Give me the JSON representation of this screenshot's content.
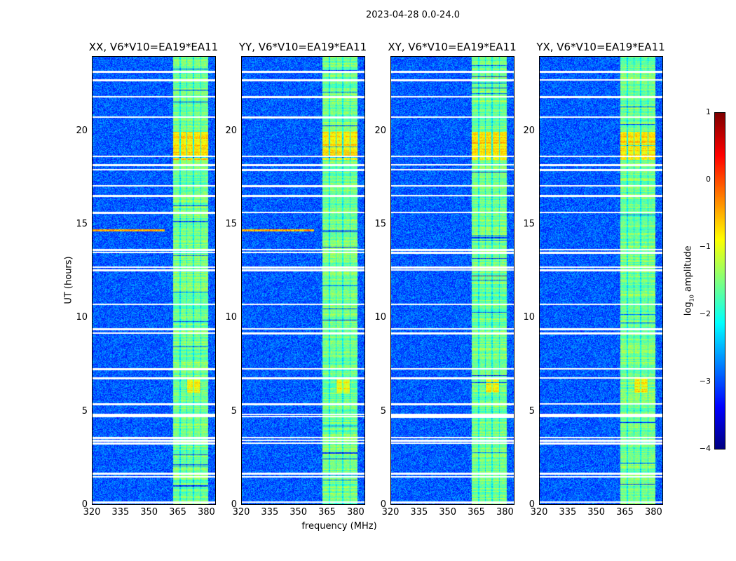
{
  "chart_data": {
    "type": "heatmap",
    "title": "2023-04-28 0.0-24.0",
    "xlabel": "frequency (MHz)",
    "ylabel": "UT (hours)",
    "xlim": [
      320,
      385
    ],
    "ylim": [
      0,
      24
    ],
    "xticks": [
      "320",
      "335",
      "350",
      "365",
      "380"
    ],
    "yticks": [
      "0",
      "5",
      "10",
      "15",
      "20"
    ],
    "panels": [
      {
        "title": "XX, V6*V10=EA19*EA11"
      },
      {
        "title": "YY, V6*V10=EA19*EA11"
      },
      {
        "title": "XY, V6*V10=EA19*EA11"
      },
      {
        "title": "YX, V6*V10=EA19*EA11"
      }
    ],
    "colorbar": {
      "label_main": "log",
      "label_sub": "10",
      "label_rest": " amplitude",
      "range": [
        -4,
        1
      ],
      "ticks": [
        "1",
        "0",
        "−1",
        "−2",
        "−3",
        "−4"
      ],
      "colormap": "jet"
    },
    "rfi_band_mhz": [
      362.5,
      381
    ],
    "background_log_amp": -3.0,
    "band_log_amp": -1.6,
    "flagged_hours": [
      0.15,
      1.5,
      1.7,
      3.3,
      3.45,
      3.6,
      4.75,
      4.85,
      5.4,
      6.8,
      7.3,
      9.2,
      9.45,
      10.75,
      12.6,
      12.75,
      13.55,
      13.7,
      15.7,
      16.6,
      17.1,
      18.0,
      18.25,
      18.7,
      20.8,
      21.9,
      22.8,
      23.25
    ]
  }
}
